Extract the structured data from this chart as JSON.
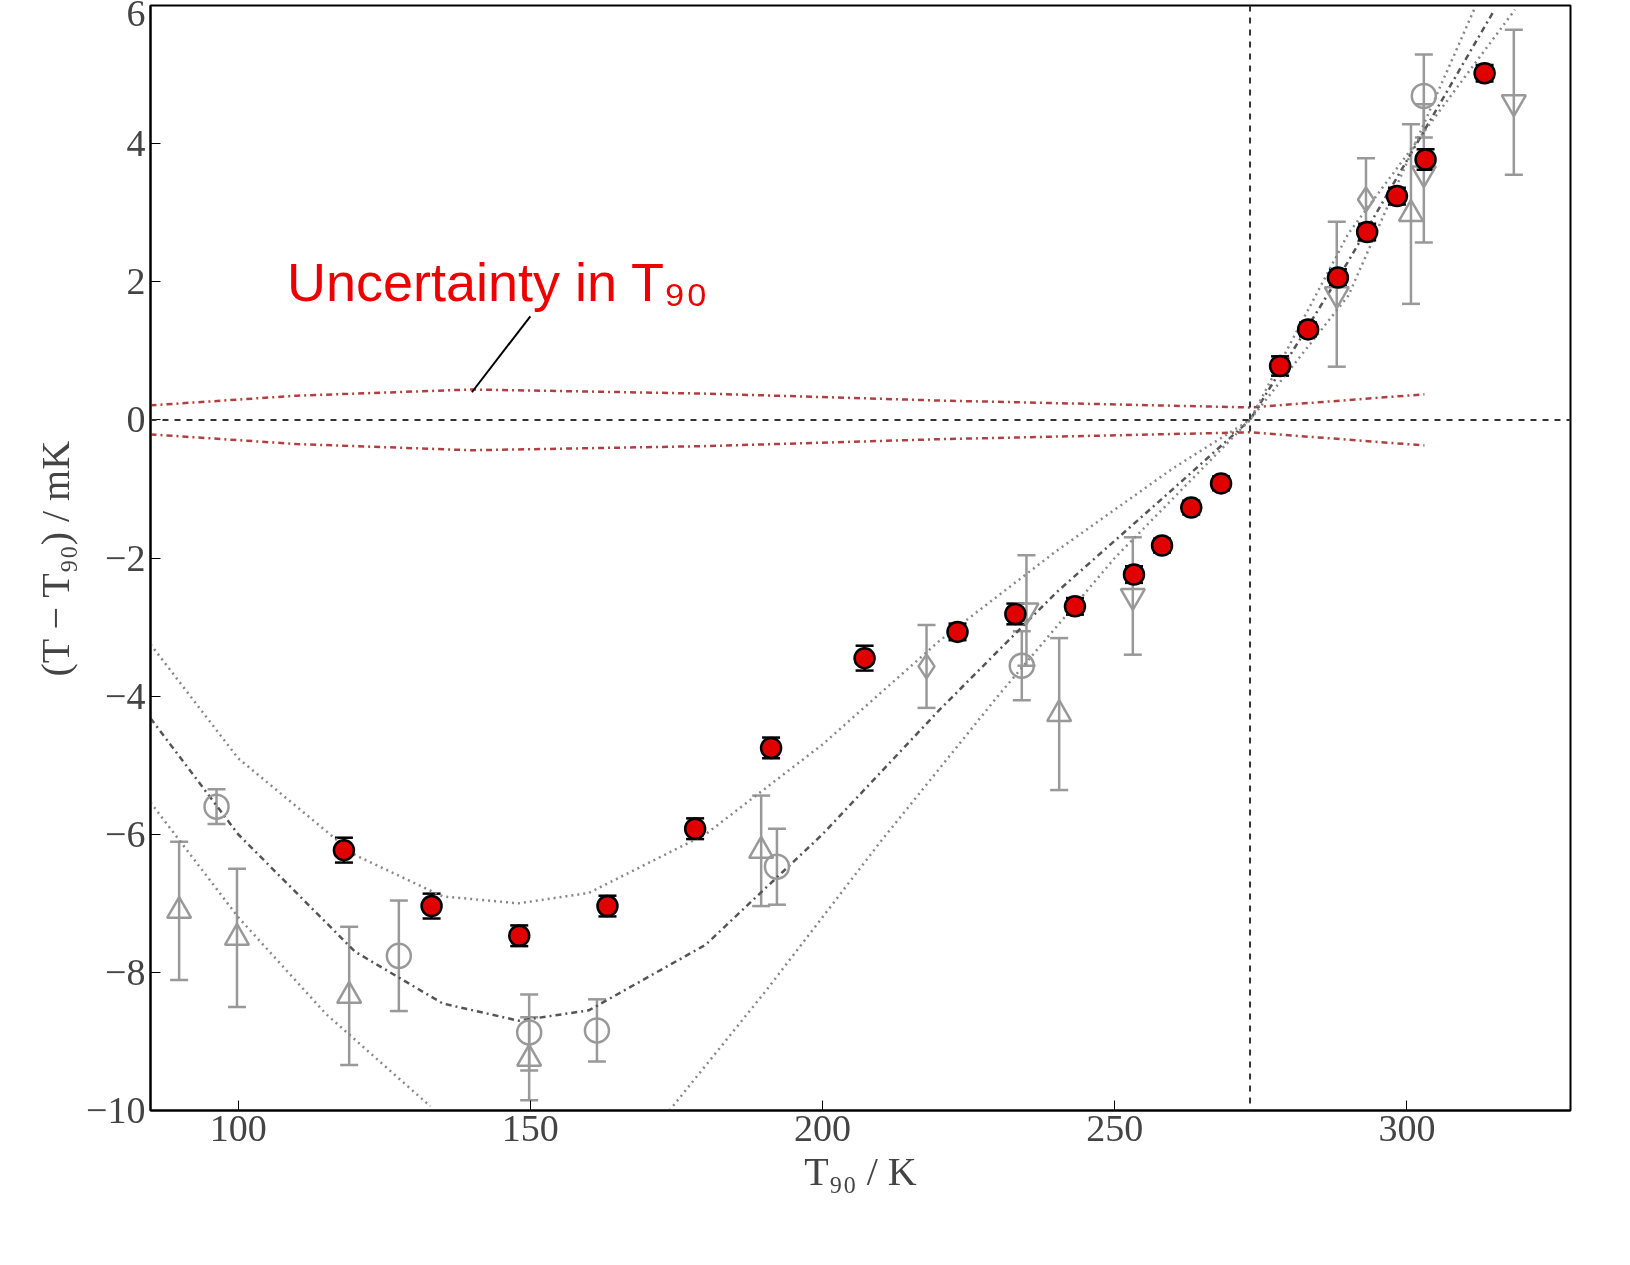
{
  "chart_data": {
    "type": "scatter",
    "xlabel": "T₉₀ / K",
    "ylabel": "(T − T₉₀) / mK",
    "xlim": [
      85,
      328
    ],
    "ylim": [
      -10,
      6
    ],
    "xticks": [
      100,
      150,
      200,
      250,
      300
    ],
    "yticks": [
      {
        "value": -10,
        "label": "−10"
      },
      {
        "value": -8,
        "label": "−8"
      },
      {
        "value": -6,
        "label": "−6"
      },
      {
        "value": -4,
        "label": "−4"
      },
      {
        "value": -2,
        "label": "−2"
      },
      0,
      2,
      4,
      6
    ],
    "grid": false,
    "annotations": [
      {
        "text": "Uncertainty in T₉₀",
        "x": 140,
        "y": 0.4
      }
    ],
    "ref_lines": [
      {
        "axis": "x",
        "value": 273.16,
        "line_style": "dashed",
        "color": "#333333"
      },
      {
        "axis": "y",
        "value": 0,
        "line_style": "dashed",
        "color": "#333333"
      }
    ],
    "series": [
      {
        "type": "line",
        "color": "#b04040",
        "line_style": "dashdot",
        "x": [
          85,
          110,
          140,
          180,
          220,
          273.16,
          303
        ],
        "values": [
          0.21,
          0.35,
          0.44,
          0.38,
          0.28,
          0.18,
          0.37
        ]
      },
      {
        "type": "line",
        "color": "#b04040",
        "line_style": "dashdot",
        "x": [
          85,
          110,
          140,
          180,
          220,
          273.16,
          303
        ],
        "values": [
          -0.21,
          -0.35,
          -0.44,
          -0.38,
          -0.28,
          -0.18,
          -0.37
        ]
      },
      {
        "type": "line",
        "color": "#555555",
        "line_style": "dashdot",
        "x": [
          85,
          100,
          120,
          135,
          148,
          160,
          180,
          200,
          220,
          240,
          260,
          273.16,
          290,
          315
        ],
        "values": [
          -4.32,
          -6.0,
          -7.7,
          -8.45,
          -8.7,
          -8.55,
          -7.6,
          -6.0,
          -4.2,
          -2.5,
          -1.0,
          0,
          2.3,
          5.94
        ]
      },
      {
        "type": "line",
        "color": "#888888",
        "line_style": "dotted",
        "x": [
          85,
          100,
          120,
          135,
          148,
          160,
          180,
          200,
          220,
          240,
          260,
          273.16,
          290,
          311.5
        ],
        "values": [
          -3.25,
          -4.9,
          -6.3,
          -6.9,
          -7.0,
          -6.85,
          -6.0,
          -4.7,
          -3.2,
          -1.9,
          -0.7,
          0,
          1.8,
          5.94
        ]
      },
      {
        "type": "line",
        "color": "#888888",
        "line_style": "dotted",
        "x": [
          85,
          100,
          115,
          132.9
        ],
        "values": [
          -5.54,
          -7.2,
          -8.6,
          -9.94
        ]
      },
      {
        "type": "line",
        "color": "#888888",
        "line_style": "dotted",
        "x": [
          173.8,
          190,
          210,
          230,
          250,
          273.16,
          290,
          318.5
        ],
        "values": [
          -10,
          -8.3,
          -6.1,
          -4.0,
          -2.0,
          0,
          2.7,
          5.94
        ]
      },
      {
        "marker": "circle",
        "color": "#999999",
        "x": [
          96.3,
          127.5,
          149.8,
          161.4,
          192.2,
          234.1,
          302.9
        ],
        "values": [
          -5.6,
          -7.76,
          -8.87,
          -8.84,
          -6.47,
          -3.56,
          4.69
        ],
        "errors": [
          0.25,
          0.8,
          0.55,
          0.45,
          0.55,
          0.5,
          0.6
        ]
      },
      {
        "marker": "triangle",
        "color": "#999999",
        "x": [
          89.9,
          99.8,
          119,
          149.8,
          189.5,
          240.5,
          300.7
        ],
        "values": [
          -7.11,
          -7.5,
          -8.34,
          -9.25,
          -6.24,
          -4.26,
          2.98
        ],
        "errors": [
          1,
          1,
          1,
          0.6,
          0.8,
          1.1,
          1.3
        ]
      },
      {
        "marker": "triangle_down",
        "color": "#999999",
        "x": [
          234.9,
          253.1,
          288,
          302.9,
          318.3
        ],
        "values": [
          -2.76,
          -2.55,
          1.82,
          3.57,
          4.6
        ],
        "errors": [
          0.8,
          0.85,
          1.05,
          1,
          1.05
        ]
      },
      {
        "marker": "diamond",
        "color": "#999999",
        "x": [
          217.8,
          293
        ],
        "values": [
          -3.57,
          3.19
        ],
        "errors": [
          0.6,
          0.6
        ]
      },
      {
        "marker": "circle",
        "colors": [
          "#e00000",
          "#e00000",
          "#e00000",
          "#e00000",
          "#e00000",
          "#e00000",
          "#e00000",
          "#e00000",
          "#e00000",
          "#e00000",
          "#e00000",
          "#e00000",
          "#e00000",
          "#e00000",
          "#e00000",
          "#e00000",
          "#e00000",
          "#e00000",
          "#e00000",
          "#e00000",
          "#e00000"
        ],
        "x": [
          118.1,
          133.1,
          148.1,
          163.2,
          178.2,
          191.2,
          207.2,
          223.1,
          233,
          243.2,
          253.3,
          258.1,
          263.1,
          268.2,
          278.3,
          283.1,
          288.2,
          293.2,
          298.3,
          303.2,
          313.3
        ],
        "values": [
          -6.23,
          -7.04,
          -7.47,
          -7.04,
          -5.92,
          -4.75,
          -3.45,
          -3.07,
          -2.81,
          -2.7,
          -2.24,
          -1.82,
          -1.27,
          -0.92,
          0.78,
          1.31,
          2.06,
          2.72,
          3.24,
          3.77,
          5.02
        ],
        "errors": [
          0.18,
          0.18,
          0.15,
          0.15,
          0.15,
          0.15,
          0.18,
          0.12,
          0.15,
          0.12,
          0.12,
          0.1,
          0.1,
          0.1,
          0.14,
          0.1,
          0.12,
          0.12,
          0.12,
          0.15,
          0.12
        ]
      }
    ]
  }
}
